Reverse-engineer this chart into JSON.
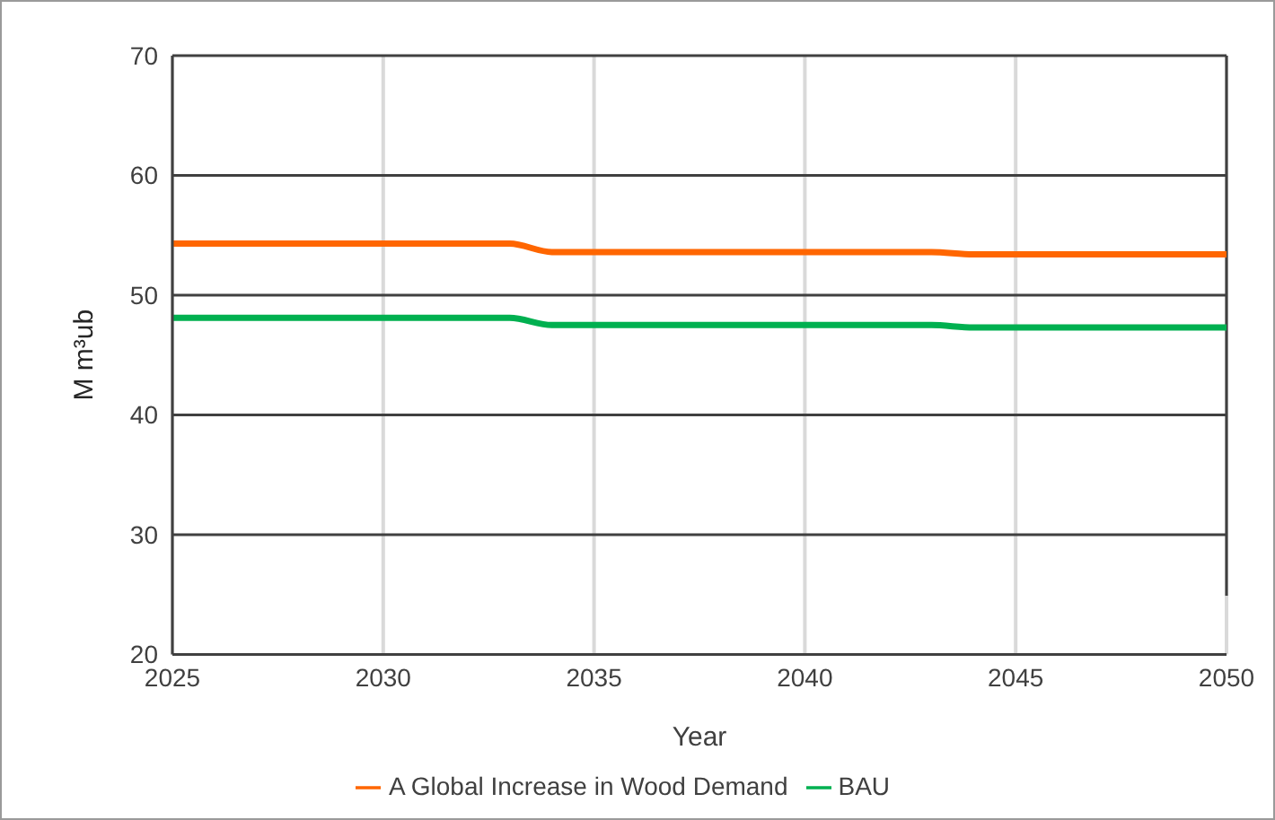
{
  "chart_data": {
    "type": "line",
    "xlabel": "Year",
    "ylabel": "M m³ub",
    "x": [
      2025,
      2026,
      2027,
      2028,
      2029,
      2030,
      2031,
      2032,
      2033,
      2034,
      2035,
      2036,
      2037,
      2038,
      2039,
      2040,
      2041,
      2042,
      2043,
      2044,
      2045,
      2046,
      2047,
      2048,
      2049,
      2050
    ],
    "series": [
      {
        "name": "BAU",
        "color": "#00b050",
        "values": [
          48.1,
          48.1,
          48.1,
          48.1,
          48.1,
          48.1,
          48.1,
          48.1,
          48.1,
          47.5,
          47.5,
          47.5,
          47.5,
          47.5,
          47.5,
          47.5,
          47.5,
          47.5,
          47.5,
          47.3,
          47.3,
          47.3,
          47.3,
          47.3,
          47.3,
          47.3
        ]
      },
      {
        "name": "A Global Increase in Wood Demand",
        "color": "#ff6600",
        "values": [
          54.3,
          54.3,
          54.3,
          54.3,
          54.3,
          54.3,
          54.3,
          54.3,
          54.3,
          53.6,
          53.6,
          53.6,
          53.6,
          53.6,
          53.6,
          53.6,
          53.6,
          53.6,
          53.6,
          53.4,
          53.4,
          53.4,
          53.4,
          53.4,
          53.4,
          53.4
        ]
      }
    ],
    "xlim": [
      2025,
      2050
    ],
    "xticks": [
      2025,
      2030,
      2035,
      2040,
      2045,
      2050
    ],
    "ylim": [
      20,
      70
    ],
    "yticks": [
      20,
      30,
      40,
      50,
      60,
      70
    ],
    "grid": true,
    "legend": "bottom",
    "marker": "none",
    "line_style": "solid"
  }
}
